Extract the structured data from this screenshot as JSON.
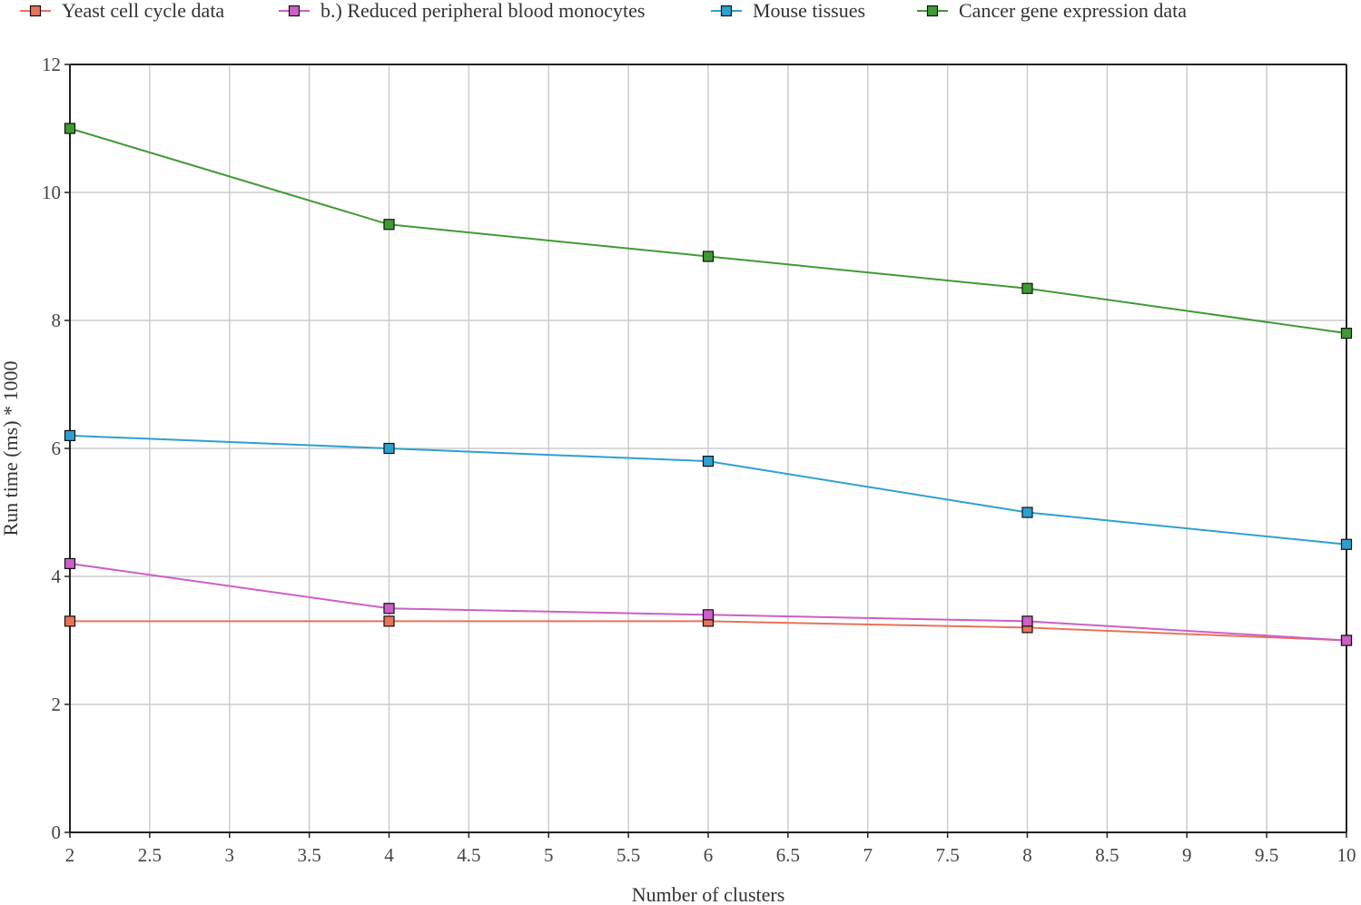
{
  "chart_data": {
    "type": "line",
    "title": "",
    "xlabel": "Number of clusters",
    "ylabel": "Run time (ms) * 1000",
    "xlim": [
      2,
      10
    ],
    "ylim": [
      0,
      12
    ],
    "x_ticks": [
      "2",
      "2.5",
      "3",
      "3.5",
      "4",
      "4.5",
      "5",
      "5.5",
      "6",
      "6.5",
      "7",
      "7.5",
      "8",
      "8.5",
      "9",
      "9.5",
      "10"
    ],
    "y_ticks": [
      "0",
      "2",
      "4",
      "6",
      "8",
      "10",
      "12"
    ],
    "x_tick_values": [
      2,
      2.5,
      3,
      3.5,
      4,
      4.5,
      5,
      5.5,
      6,
      6.5,
      7,
      7.5,
      8,
      8.5,
      9,
      9.5,
      10
    ],
    "y_tick_values": [
      0,
      2,
      4,
      6,
      8,
      10,
      12
    ],
    "grid": true,
    "legend_position": "top",
    "x": [
      2,
      4,
      6,
      8,
      10
    ],
    "series": [
      {
        "name": "Yeast cell cycle data",
        "color": "#e8735a",
        "values": [
          3.3,
          3.3,
          3.3,
          3.2,
          3.0
        ]
      },
      {
        "name": "b.) Reduced peripheral blood monocytes",
        "color": "#cc5fc8",
        "values": [
          4.2,
          3.5,
          3.4,
          3.3,
          3.0
        ]
      },
      {
        "name": "Mouse tissues",
        "color": "#2f9fd0",
        "values": [
          6.2,
          6.0,
          5.8,
          5.0,
          4.5
        ]
      },
      {
        "name": "Cancer gene expression data",
        "color": "#3f9a35",
        "values": [
          11.0,
          9.5,
          9.0,
          8.5,
          7.8
        ]
      }
    ]
  }
}
